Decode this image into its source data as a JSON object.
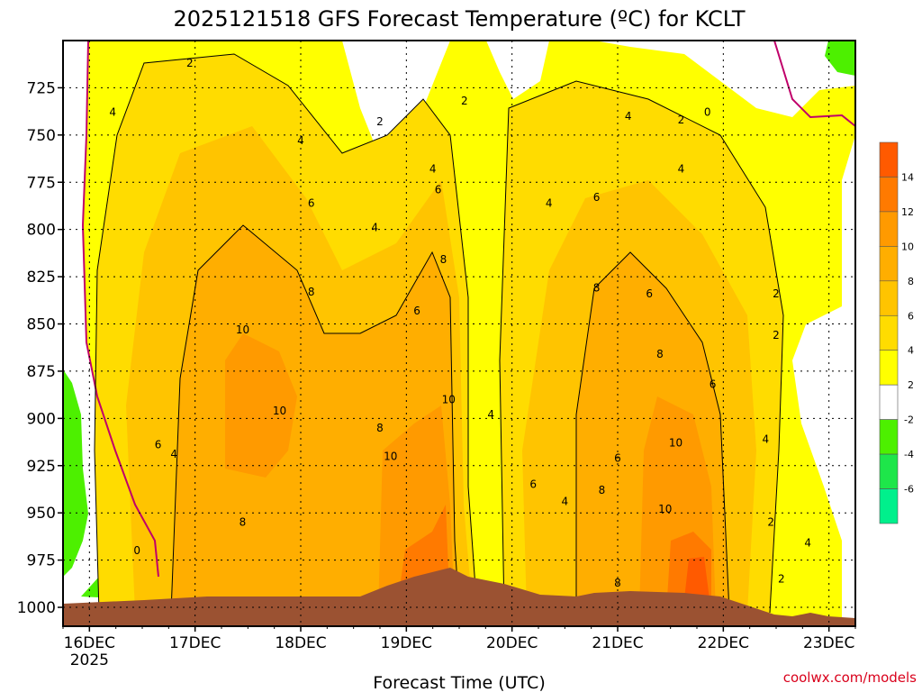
{
  "chart_data": {
    "type": "heatmap",
    "title": "2025121518 GFS Forecast Temperature (ºC) for KCLT",
    "xlabel": "Forecast Time (UTC)",
    "ylabel": "",
    "credit": "coolwx.com/models",
    "x_ticks": [
      "16DEC",
      "17DEC",
      "18DEC",
      "19DEC",
      "20DEC",
      "21DEC",
      "22DEC",
      "23DEC"
    ],
    "x_first_sub": "2025",
    "y_ticks": [
      725,
      750,
      775,
      800,
      825,
      850,
      875,
      900,
      925,
      950,
      975,
      1000
    ],
    "ylim": [
      1010,
      700
    ],
    "grid": true,
    "colorbar": {
      "labels": [
        "14",
        "12",
        "10",
        "8",
        "6",
        "4",
        "2",
        "-2",
        "-4",
        "-6"
      ],
      "bins": [
        {
          "range": [
            14,
            16
          ],
          "color": "#ff5a00"
        },
        {
          "range": [
            12,
            14
          ],
          "color": "#ff7a00"
        },
        {
          "range": [
            10,
            12
          ],
          "color": "#ff9a00"
        },
        {
          "range": [
            8,
            10
          ],
          "color": "#ffae00"
        },
        {
          "range": [
            6,
            8
          ],
          "color": "#ffc400"
        },
        {
          "range": [
            4,
            6
          ],
          "color": "#ffdc00"
        },
        {
          "range": [
            2,
            4
          ],
          "color": "#ffff00"
        },
        {
          "range": [
            -2,
            2
          ],
          "color": "#ffffff"
        },
        {
          "range": [
            -4,
            -2
          ],
          "color": "#4df000"
        },
        {
          "range": [
            -6,
            -4
          ],
          "color": "#1ee64a"
        },
        {
          "range": [
            -8,
            -6
          ],
          "color": "#00f08c"
        }
      ]
    },
    "contour_labels": [
      {
        "text": "2",
        "day": 16.95,
        "p": 712
      },
      {
        "text": "4",
        "day": 16.22,
        "p": 738
      },
      {
        "text": "2",
        "day": 18.75,
        "p": 743
      },
      {
        "text": "2",
        "day": 19.55,
        "p": 732
      },
      {
        "text": "4",
        "day": 18.0,
        "p": 753
      },
      {
        "text": "4",
        "day": 19.25,
        "p": 768
      },
      {
        "text": "4",
        "day": 20.35,
        "p": 786
      },
      {
        "text": "4",
        "day": 21.1,
        "p": 740
      },
      {
        "text": "2",
        "day": 21.6,
        "p": 742
      },
      {
        "text": "0",
        "day": 21.85,
        "p": 738
      },
      {
        "text": "4",
        "day": 21.6,
        "p": 768
      },
      {
        "text": "6",
        "day": 18.1,
        "p": 786
      },
      {
        "text": "6",
        "day": 19.3,
        "p": 779
      },
      {
        "text": "6",
        "day": 20.8,
        "p": 783
      },
      {
        "text": "4",
        "day": 18.7,
        "p": 799
      },
      {
        "text": "8",
        "day": 19.35,
        "p": 816
      },
      {
        "text": "8",
        "day": 18.1,
        "p": 833
      },
      {
        "text": "8",
        "day": 20.8,
        "p": 831
      },
      {
        "text": "6",
        "day": 19.1,
        "p": 843
      },
      {
        "text": "6",
        "day": 21.3,
        "p": 834
      },
      {
        "text": "2",
        "day": 22.5,
        "p": 834
      },
      {
        "text": "2",
        "day": 22.5,
        "p": 856
      },
      {
        "text": "10",
        "day": 17.45,
        "p": 853
      },
      {
        "text": "8",
        "day": 21.4,
        "p": 866
      },
      {
        "text": "6",
        "day": 21.9,
        "p": 882
      },
      {
        "text": "4",
        "day": 19.8,
        "p": 898
      },
      {
        "text": "10",
        "day": 17.8,
        "p": 896
      },
      {
        "text": "10",
        "day": 19.4,
        "p": 890
      },
      {
        "text": "8",
        "day": 18.75,
        "p": 905
      },
      {
        "text": "4",
        "day": 22.4,
        "p": 911
      },
      {
        "text": "6",
        "day": 16.65,
        "p": 914
      },
      {
        "text": "4",
        "day": 16.8,
        "p": 919
      },
      {
        "text": "10",
        "day": 18.85,
        "p": 920
      },
      {
        "text": "10",
        "day": 21.55,
        "p": 913
      },
      {
        "text": "6",
        "day": 21.0,
        "p": 921
      },
      {
        "text": "6",
        "day": 20.2,
        "p": 935
      },
      {
        "text": "8",
        "day": 20.85,
        "p": 938
      },
      {
        "text": "4",
        "day": 20.5,
        "p": 944
      },
      {
        "text": "10",
        "day": 21.45,
        "p": 948
      },
      {
        "text": "8",
        "day": 17.45,
        "p": 955
      },
      {
        "text": "2",
        "day": 22.45,
        "p": 955
      },
      {
        "text": "4",
        "day": 22.8,
        "p": 966
      },
      {
        "text": "0",
        "day": 16.45,
        "p": 970
      },
      {
        "text": "2",
        "day": 22.55,
        "p": 985
      },
      {
        "text": "8",
        "day": 21.0,
        "p": 987
      }
    ]
  }
}
